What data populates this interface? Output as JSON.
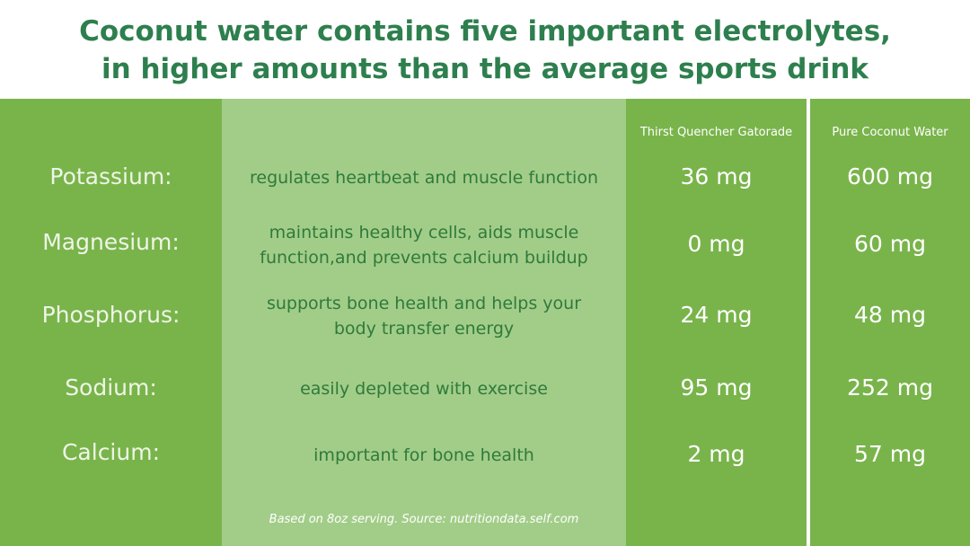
{
  "header": {
    "title": [
      "Coconut water contains five important electrolytes,",
      "in higher amounts than the average sports drink"
    ]
  },
  "table": {
    "columns": [
      "Thirst Quencher Gatorade",
      "Pure Coconut Water"
    ],
    "rows": [
      {
        "name": "Potassium:",
        "description": [
          "regulates heartbeat and muscle function"
        ],
        "gatorade": "36 mg",
        "coconut": "600 mg"
      },
      {
        "name": "Magnesium:",
        "description": [
          "maintains healthy cells, aids muscle",
          "function,and prevents calcium buildup"
        ],
        "gatorade": "0 mg",
        "coconut": "60 mg"
      },
      {
        "name": "Phosphorus:",
        "description": [
          "supports bone health and helps your",
          "body transfer energy"
        ],
        "gatorade": "24 mg",
        "coconut": "48 mg"
      },
      {
        "name": "Sodium:",
        "description": [
          "easily depleted with exercise"
        ],
        "gatorade": "95 mg",
        "coconut": "252 mg"
      },
      {
        "name": "Calcium:",
        "description": [
          "important for bone health"
        ],
        "gatorade": "2 mg",
        "coconut": "57 mg"
      }
    ]
  },
  "footnote": "Based on 8oz serving. Source: nutritiondata.self.com"
}
